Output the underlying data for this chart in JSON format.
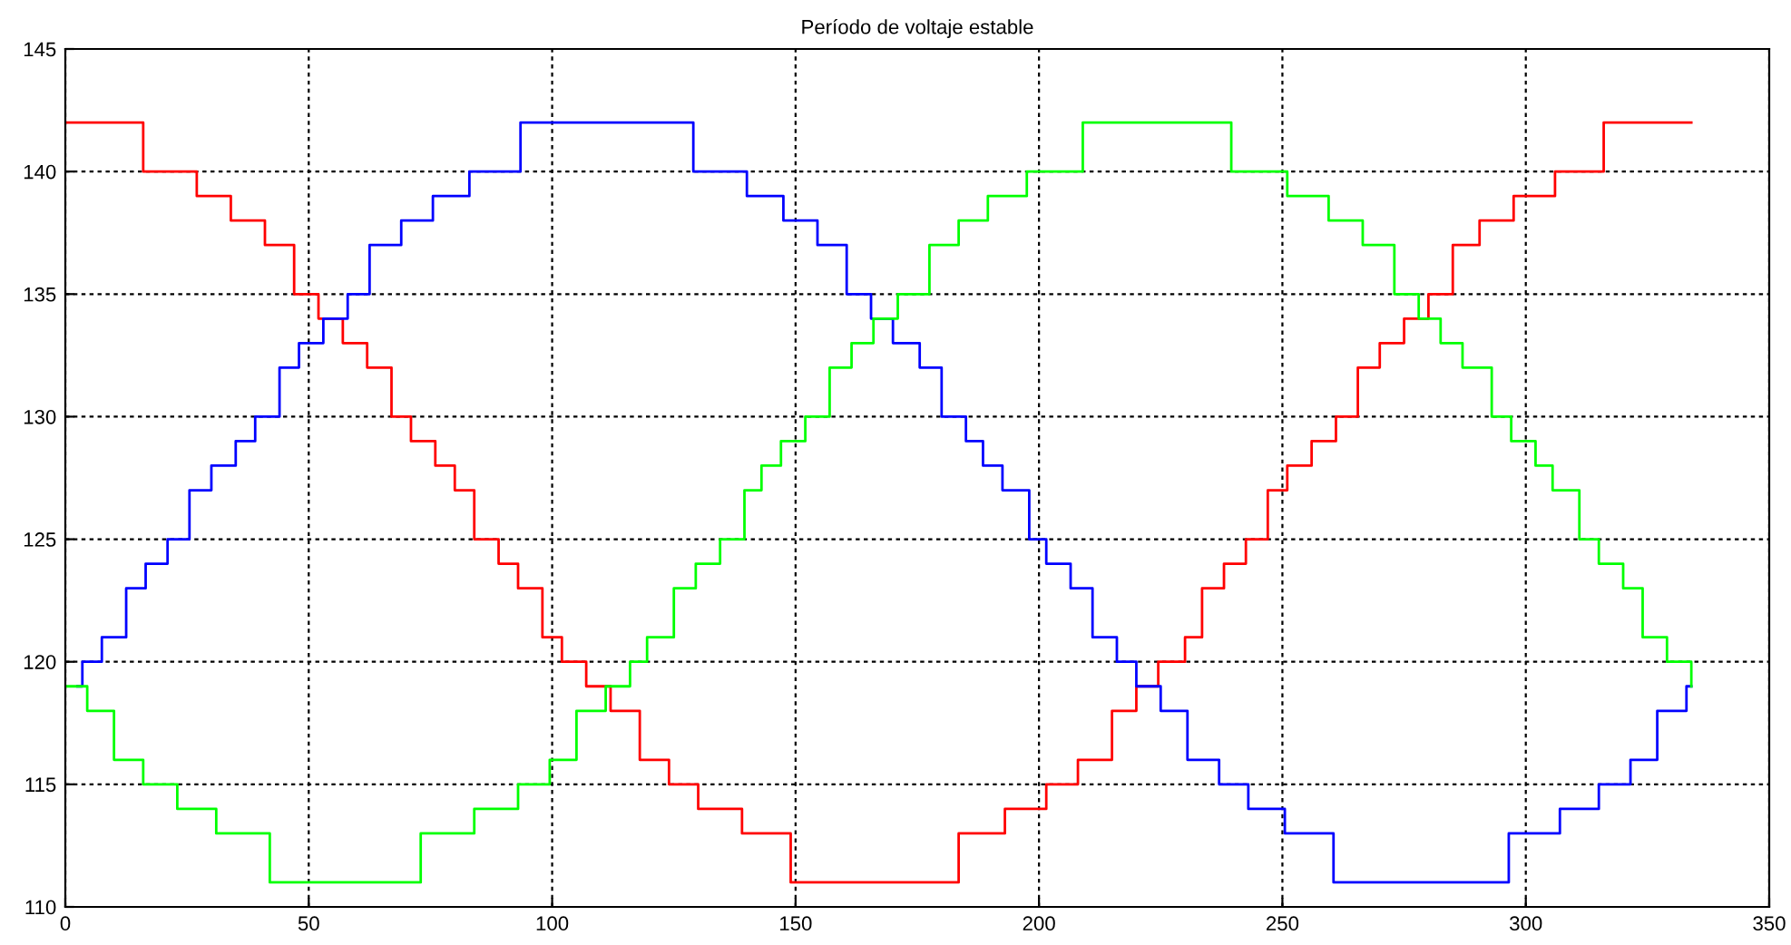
{
  "chart_data": {
    "type": "step",
    "title": "Período de voltaje estable",
    "xlim": [
      0,
      350
    ],
    "ylim": [
      110,
      145
    ],
    "xticks": [
      0,
      50,
      100,
      150,
      200,
      250,
      300,
      350
    ],
    "yticks": [
      110,
      115,
      120,
      125,
      130,
      135,
      140,
      145
    ],
    "grid": true,
    "line_style": "solid",
    "series": [
      {
        "color": "#ff0000",
        "x": [
          0,
          16,
          27,
          34,
          41,
          47,
          52,
          57,
          62,
          67,
          71,
          76,
          80,
          84,
          89,
          93,
          98,
          102,
          107,
          112,
          118,
          124,
          130,
          139,
          149,
          183.5,
          193,
          201.5,
          208,
          215,
          220,
          224.5,
          230,
          233.5,
          238,
          242.5,
          247,
          251,
          256,
          261,
          265.5,
          270,
          275,
          280,
          285,
          290.5,
          297.5,
          306,
          316,
          334
        ],
        "values": [
          142,
          140,
          139,
          138,
          137,
          135,
          134,
          133,
          132,
          130,
          129,
          128,
          127,
          125,
          124,
          123,
          121,
          120,
          119,
          118,
          116,
          115,
          114,
          113,
          111,
          113,
          114,
          115,
          116,
          118,
          119,
          120,
          121,
          123,
          124,
          125,
          127,
          128,
          129,
          130,
          132,
          133,
          134,
          135,
          137,
          138,
          139,
          140,
          142,
          142
        ]
      },
      {
        "color": "#0000ff",
        "x": [
          2.5,
          3.5,
          7.5,
          12.5,
          16.5,
          21,
          25.5,
          30,
          35,
          39,
          44,
          48,
          53,
          58,
          62.5,
          69,
          75.5,
          83,
          93.5,
          129,
          140,
          147.5,
          154.5,
          160.5,
          165.5,
          170,
          175.5,
          180,
          185,
          188.5,
          192.5,
          198,
          201.5,
          206.5,
          211,
          216,
          220,
          225,
          230.5,
          237,
          243,
          250.5,
          260.5,
          296.5,
          307,
          315,
          321.5,
          327,
          333,
          334
        ],
        "values": [
          119,
          120,
          121,
          123,
          124,
          125,
          127,
          128,
          129,
          130,
          132,
          133,
          134,
          135,
          137,
          138,
          139,
          140,
          142,
          140,
          139,
          138,
          137,
          135,
          134,
          133,
          132,
          130,
          129,
          128,
          127,
          125,
          124,
          123,
          121,
          120,
          119,
          118,
          116,
          115,
          114,
          113,
          111,
          113,
          114,
          115,
          116,
          118,
          119,
          119
        ]
      },
      {
        "color": "#00ff00",
        "x": [
          0,
          4.5,
          10,
          16,
          23,
          31,
          42,
          73,
          84,
          93,
          99.5,
          105,
          111,
          116,
          119.5,
          125,
          129.5,
          134.5,
          139.5,
          143,
          147,
          152,
          157,
          161.5,
          166,
          171,
          177.5,
          183.5,
          189.5,
          197.5,
          209,
          239.5,
          251,
          259.5,
          266.5,
          273,
          278,
          282.5,
          287,
          293,
          297,
          302,
          305.5,
          311,
          315,
          320,
          324,
          329,
          334
        ],
        "values": [
          119,
          118,
          116,
          115,
          114,
          113,
          111,
          113,
          114,
          115,
          116,
          118,
          119,
          120,
          121,
          123,
          124,
          125,
          127,
          128,
          129,
          130,
          132,
          133,
          134,
          135,
          137,
          138,
          139,
          140,
          142,
          140,
          139,
          138,
          137,
          135,
          134,
          133,
          132,
          130,
          129,
          128,
          127,
          125,
          124,
          123,
          121,
          120,
          119
        ]
      }
    ]
  }
}
